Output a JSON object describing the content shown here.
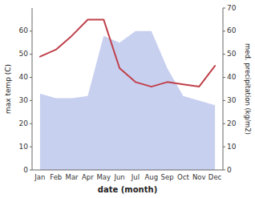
{
  "chart_data": {
    "type": "line",
    "categories": [
      "Jan",
      "Feb",
      "Mar",
      "Apr",
      "May",
      "Jun",
      "Jul",
      "Aug",
      "Sep",
      "Oct",
      "Nov",
      "Dec"
    ],
    "xlabel": "date (month)",
    "ylabel": "max temp (C)",
    "y2label": "med. precipitation (kg/m2)",
    "series": [
      {
        "type": "area",
        "axis": "y2",
        "color": "#c8d0f0",
        "values": [
          33,
          31,
          31,
          32,
          58,
          55,
          60,
          60,
          44,
          32,
          30,
          28
        ]
      },
      {
        "type": "line",
        "color": "#c0404a",
        "values": [
          49,
          52,
          58,
          65,
          65,
          44,
          38,
          36,
          38,
          37,
          36,
          45
        ]
      }
    ],
    "ylim": [
      0,
      70
    ],
    "yticks": [
      0,
      10,
      20,
      30,
      40,
      50,
      60
    ],
    "y2lim": [
      0,
      70
    ],
    "y2ticks": [
      0,
      10,
      20,
      30,
      40,
      50,
      60,
      70
    ],
    "grid": false
  }
}
